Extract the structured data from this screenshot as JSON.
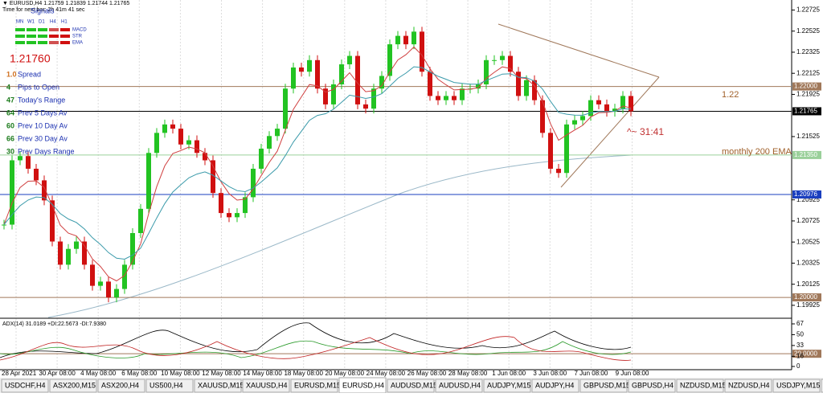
{
  "header": {
    "symbol_line": "▼ EURUSD,H4  1.21759 1.21839 1.21744 1.21765",
    "timer": "Time for next bar: 2h 41m 41 sec"
  },
  "panel": {
    "signals": "Signals",
    "timeframes": [
      "MN",
      "W1",
      "D1",
      "H4",
      "H1"
    ],
    "indicators": [
      "MACD",
      "STR",
      "EMA"
    ],
    "price": "1.21760",
    "stats": [
      [
        "1.0",
        "Spread"
      ],
      [
        "4",
        "Pips to Open"
      ],
      [
        "47",
        "Today's Range"
      ],
      [
        "64",
        "Prev 5 Days Av"
      ],
      [
        "60",
        "Prev 10 Day Av"
      ],
      [
        "66",
        "Prev 30 Day Av"
      ],
      [
        "30",
        "Prev Days Range"
      ]
    ]
  },
  "chart_data": {
    "type": "candlestick",
    "closes": [
      1.2069,
      1.213,
      1.2134,
      1.2122,
      1.2111,
      1.2092,
      1.2053,
      1.2031,
      1.2046,
      1.2053,
      1.2031,
      1.2011,
      1.2015,
      1.2,
      1.2008,
      1.2031,
      1.2061,
      1.2084,
      1.2137,
      1.2156,
      1.2164,
      1.216,
      1.2145,
      1.2149,
      1.2137,
      1.213,
      1.2099,
      1.208,
      1.2076,
      1.208,
      1.2095,
      1.2122,
      1.2141,
      1.2153,
      1.216,
      1.2198,
      1.2218,
      1.2214,
      1.2225,
      1.2198,
      1.2183,
      1.2202,
      1.2221,
      1.2229,
      1.2183,
      1.2179,
      1.2198,
      1.221,
      1.224,
      1.2248,
      1.224,
      1.2252,
      1.2214,
      1.2191,
      1.2187,
      1.2191,
      1.2187,
      1.2198,
      1.2198,
      1.2202,
      1.2225,
      1.2225,
      1.2229,
      1.2214,
      1.2191,
      1.2206,
      1.2187,
      1.2156,
      1.2122,
      1.2118,
      1.2164,
      1.2168,
      1.2172,
      1.2187,
      1.2183,
      1.2176,
      1.2179,
      1.2191,
      1.21765
    ],
    "up_color": "#22c322",
    "down_color": "#d01010",
    "ylim": [
      1.1981,
      1.2282
    ],
    "yticks": [
      1.22725,
      1.22525,
      1.22325,
      1.22125,
      1.21925,
      1.21525,
      1.20925,
      1.20725,
      1.20525,
      1.20325,
      1.20125,
      1.19925
    ],
    "levels": [
      {
        "value": 1.22,
        "label": "1.22000",
        "color": "#a0785a"
      },
      {
        "value": 1.21765,
        "label": "1.21765",
        "color": "#000000"
      },
      {
        "value": 1.2135,
        "label": "1.21350",
        "color": "#9ad09a"
      },
      {
        "value": 1.20976,
        "label": "1.20976",
        "color": "#1a3fbf"
      },
      {
        "value": 1.2,
        "label": "1.20000",
        "color": "#a0785a"
      }
    ],
    "x_labels": [
      "28 Apr 2021",
      "30 Apr 08:00",
      "4 May 08:00",
      "6 May 08:00",
      "10 May 08:00",
      "12 May 08:00",
      "14 May 08:00",
      "18 May 08:00",
      "20 May 08:00",
      "24 May 08:00",
      "26 May 08:00",
      "28 May 08:00",
      "1 Jun 08:00",
      "3 Jun 08:00",
      "7 Jun 08:00",
      "9 Jun 08:00"
    ],
    "annotations": [
      "1.22",
      "^~ 31:41",
      "monthly 200 EMA"
    ],
    "adx": {
      "title": "ADX(14) 31.0189 +DI:22.5673 -DI:7.9380",
      "ylim": [
        0,
        67
      ],
      "yticks": [
        67,
        50,
        33,
        {
          "value": 20,
          "label": "20.0000"
        },
        16,
        0
      ]
    }
  },
  "tabs": [
    "USDCHF,H4",
    "ASX200,M15",
    "ASX200,H4",
    "US500,H4",
    "XAUUSD,M15",
    "XAUUSD,H4",
    "EURUSD,M15",
    "EURUSD,H4",
    "AUDUSD,M15",
    "AUDUSD,H4",
    "AUDJPY,M15",
    "AUDJPY,H4",
    "GBPUSD,M15",
    "GBPUSD,H4",
    "NZDUSD,M15",
    "NZDUSD,H4",
    "USDJPY,M15",
    "U"
  ]
}
